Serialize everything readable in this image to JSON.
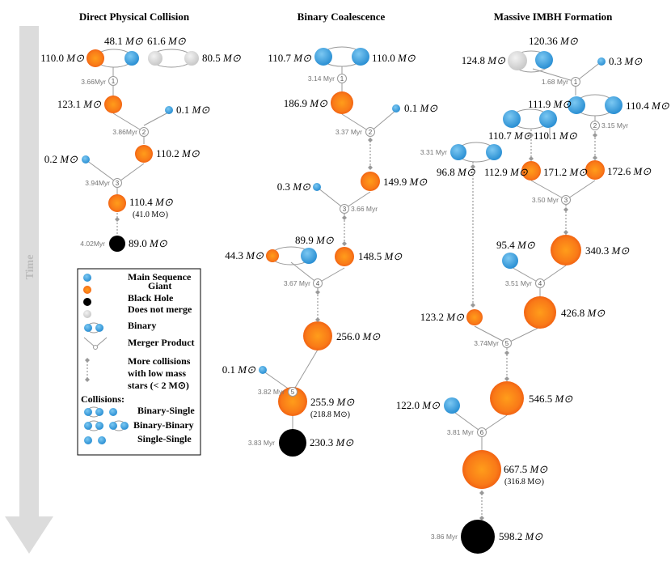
{
  "titles": {
    "direct": "Direct Physical Collision",
    "binary": "Binary Coalescence",
    "imbh": "Massive IMBH Formation"
  },
  "time_label": "Time",
  "unit": "M⊙",
  "colors": {
    "ms": "#3a9fdc",
    "giant": "#f7821e",
    "bh": "#000000",
    "nomerge": "#d3d3d3"
  },
  "direct": {
    "m1": "110.0",
    "m2": "48.1",
    "m3": "61.6",
    "m4": "80.5",
    "t1": "3.66Myr",
    "n1": "1",
    "m5": "123.1",
    "m6": "0.1",
    "t2": "3.86Myr",
    "n2": "2",
    "m7": "110.2",
    "m8": "0.2",
    "t3": "3.94Myr",
    "n3": "3",
    "m9": "110.4",
    "m9b": "(41.0 M⊙)",
    "t4": "4.02Myr",
    "m10": "89.0"
  },
  "binary": {
    "m1": "110.7",
    "m2": "110.0",
    "t1": "3.14 Myr",
    "n1": "1",
    "m3": "186.9",
    "m4": "0.1",
    "t2": "3.37 Myr",
    "n2": "2",
    "m5": "149.9",
    "m6": "0.3",
    "t3": "3.66 Myr",
    "n3": "3",
    "m7": "89.9",
    "m8": "44.3",
    "m9": "148.5",
    "t4": "3.67 Myr",
    "n4": "4",
    "m10": "256.0",
    "m11": "0.1",
    "t5": "3.82 Myr",
    "n5": "5",
    "m12": "255.9",
    "m12b": "(218.8 M⊙)",
    "t6": "3.83 Myr",
    "m13": "230.3"
  },
  "imbh": {
    "m1": "120.36",
    "m2": "124.8",
    "m3": "0.3",
    "t1": "1.68 Myr",
    "n1": "1",
    "m4": "111.9",
    "m5": "110.4",
    "t2": "3.15 Myr",
    "n2": "2",
    "m6": "110.7",
    "m7": "110.1",
    "m8": "96.8",
    "m9": "112.9",
    "t3": "3.31 Myr",
    "m10": "171.2",
    "m11": "172.6",
    "t4": "3.50 Myr",
    "n3": "3",
    "m12": "95.4",
    "m13": "340.3",
    "t5": "3.51 Myr",
    "n4": "4",
    "m14": "123.2",
    "m15": "426.8",
    "t6": "3.74Myr",
    "n5": "5",
    "m16": "122.0",
    "m17": "546.5",
    "t7": "3.81 Myr",
    "n6": "6",
    "m18": "667.5",
    "m18b": "(316.8 M⊙)",
    "t8": "3.86 Myr",
    "m19": "598.2"
  },
  "legend": {
    "ms": "Main Sequence",
    "giant": "Giant",
    "bh": "Black Hole",
    "nomerge": "Does not merge",
    "binary": "Binary",
    "merger": "Merger Product",
    "more1": "More collisions",
    "more2": "with low mass",
    "more3": "stars (< 2 M⊙)",
    "collisions": "Collisions:",
    "bs": "Binary-Single",
    "bb": "Binary-Binary",
    "ss": "Single-Single"
  }
}
